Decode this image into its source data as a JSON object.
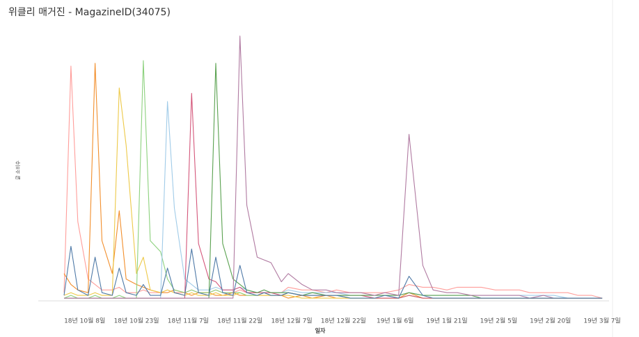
{
  "chart_data": {
    "type": "line",
    "title": "위클리 매거진 - MagazineID(34075)",
    "x_label": "일자",
    "y_label": "글 소비수",
    "x": [
      "2018-10-02",
      "2018-10-04",
      "2018-10-06",
      "2018-10-09",
      "2018-10-11",
      "2018-10-13",
      "2018-10-16",
      "2018-10-18",
      "2018-10-20",
      "2018-10-23",
      "2018-10-25",
      "2018-10-27",
      "2018-10-30",
      "2018-11-01",
      "2018-11-03",
      "2018-11-06",
      "2018-11-08",
      "2018-11-10",
      "2018-11-13",
      "2018-11-15",
      "2018-11-17",
      "2018-11-20",
      "2018-11-22",
      "2018-11-24",
      "2018-11-27",
      "2018-11-29",
      "2018-12-01",
      "2018-12-04",
      "2018-12-06",
      "2018-12-10",
      "2018-12-13",
      "2018-12-17",
      "2018-12-20",
      "2018-12-24",
      "2018-12-27",
      "2018-12-31",
      "2019-01-03",
      "2019-01-07",
      "2019-01-10",
      "2019-01-14",
      "2019-01-17",
      "2019-01-21",
      "2019-01-24",
      "2019-01-28",
      "2019-01-31",
      "2019-02-04",
      "2019-02-07",
      "2019-02-11",
      "2019-02-14",
      "2019-02-18",
      "2019-02-21",
      "2019-02-25",
      "2019-02-28",
      "2019-03-04",
      "2019-03-07"
    ],
    "xlim": [
      "2018-10-01",
      "2019-03-09"
    ],
    "xticks": [
      {
        "value": "2018-10-08",
        "label": "18년 10월 8일"
      },
      {
        "value": "2018-10-23",
        "label": "18년 10월 23일"
      },
      {
        "value": "2018-11-07",
        "label": "18년 11월 7일"
      },
      {
        "value": "2018-11-22",
        "label": "18년 11월 22일"
      },
      {
        "value": "2018-12-07",
        "label": "18년 12월 7일"
      },
      {
        "value": "2018-12-22",
        "label": "18년 12월 22일"
      },
      {
        "value": "2019-01-06",
        "label": "19년 1월 6일"
      },
      {
        "value": "2019-01-21",
        "label": "19년 1월 21일"
      },
      {
        "value": "2019-02-05",
        "label": "19년 2월 5일"
      },
      {
        "value": "2019-02-20",
        "label": "19년 2월 20일"
      },
      {
        "value": "2019-03-07",
        "label": "19년 3월 7일"
      }
    ],
    "ylim": [
      0,
      100
    ],
    "series": [
      {
        "color": "#ff9d9a",
        "values": [
          3,
          86,
          29,
          8,
          6,
          4,
          4,
          5,
          3,
          3,
          4,
          3,
          3,
          4,
          3,
          3,
          4,
          3,
          3,
          4,
          3,
          3,
          4,
          3,
          3,
          4,
          3,
          3,
          5,
          4,
          4,
          3,
          4,
          3,
          3,
          3,
          3,
          4,
          6,
          5,
          5,
          4,
          5,
          5,
          5,
          4,
          4,
          4,
          3,
          3,
          3,
          3,
          2,
          2,
          1
        ]
      },
      {
        "color": "#f28e2b",
        "values": [
          10,
          6,
          4,
          3,
          87,
          22,
          10,
          33,
          8,
          6,
          5,
          4,
          3,
          3,
          4,
          3,
          2,
          3,
          3,
          2,
          2,
          3,
          2,
          2,
          2,
          2,
          2,
          2,
          1,
          2,
          1,
          2,
          1,
          1,
          1,
          1,
          1,
          1,
          3,
          1,
          1,
          1,
          1,
          1,
          1,
          1,
          1,
          1,
          1,
          1,
          1,
          1,
          1,
          1,
          1
        ]
      },
      {
        "color": "#edc948",
        "values": [
          2,
          3,
          2,
          2,
          3,
          2,
          2,
          78,
          57,
          10,
          16,
          4,
          3,
          4,
          3,
          2,
          3,
          2,
          2,
          3,
          2,
          2,
          3,
          2,
          2,
          2,
          2,
          2,
          2,
          1,
          1,
          1,
          1,
          1,
          1,
          1,
          1,
          1,
          2,
          1,
          1,
          1,
          1,
          1,
          1,
          1,
          1,
          1,
          1,
          1,
          1,
          1,
          1,
          1,
          1
        ]
      },
      {
        "color": "#8cd17d",
        "values": [
          1,
          2,
          1,
          1,
          2,
          1,
          1,
          2,
          1,
          1,
          88,
          22,
          18,
          8,
          4,
          3,
          4,
          3,
          3,
          4,
          3,
          3,
          3,
          2,
          2,
          3,
          2,
          2,
          3,
          2,
          2,
          2,
          2,
          1,
          1,
          1,
          1,
          1,
          2,
          1,
          1,
          1,
          1,
          1,
          1,
          1,
          1,
          1,
          1,
          1,
          1,
          1,
          1,
          1,
          1
        ]
      },
      {
        "color": "#a0cbe8",
        "values": [
          1,
          1,
          1,
          1,
          1,
          1,
          1,
          1,
          1,
          1,
          1,
          1,
          1,
          73,
          34,
          8,
          6,
          4,
          4,
          5,
          4,
          4,
          5,
          4,
          3,
          4,
          3,
          3,
          4,
          3,
          3,
          3,
          3,
          2,
          2,
          2,
          2,
          2,
          3,
          2,
          2,
          2,
          2,
          2,
          2,
          2,
          2,
          2,
          2,
          2,
          2,
          1,
          1,
          1,
          1
        ]
      },
      {
        "color": "#d4567a",
        "values": [
          1,
          1,
          1,
          1,
          1,
          1,
          1,
          1,
          1,
          1,
          1,
          1,
          1,
          1,
          1,
          1,
          76,
          21,
          8,
          7,
          4,
          4,
          5,
          3,
          3,
          3,
          3,
          2,
          3,
          2,
          2,
          2,
          2,
          2,
          2,
          1,
          1,
          1,
          2,
          1,
          1,
          1,
          1,
          1,
          1,
          1,
          1,
          1,
          1,
          1,
          1,
          1,
          1,
          1,
          1
        ]
      },
      {
        "color": "#59a14f",
        "values": [
          1,
          1,
          1,
          1,
          1,
          1,
          1,
          1,
          1,
          1,
          1,
          1,
          1,
          1,
          1,
          1,
          1,
          1,
          1,
          87,
          21,
          8,
          6,
          4,
          3,
          4,
          3,
          3,
          3,
          2,
          3,
          2,
          2,
          2,
          2,
          2,
          2,
          2,
          3,
          2,
          2,
          2,
          2,
          2,
          1,
          1,
          1,
          1,
          1,
          1,
          1,
          1,
          1,
          1,
          1
        ]
      },
      {
        "color": "#b07aa1",
        "values": [
          1,
          1,
          1,
          1,
          1,
          1,
          1,
          1,
          1,
          1,
          1,
          1,
          1,
          1,
          1,
          1,
          1,
          1,
          1,
          1,
          1,
          1,
          97,
          35,
          16,
          15,
          14,
          7,
          10,
          6,
          4,
          4,
          3,
          3,
          3,
          2,
          3,
          2,
          61,
          13,
          4,
          3,
          3,
          2,
          2,
          2,
          2,
          2,
          1,
          2,
          1,
          1,
          1,
          1,
          1
        ]
      },
      {
        "color": "#4e79a7",
        "values": [
          2,
          20,
          4,
          2,
          16,
          3,
          2,
          12,
          3,
          2,
          6,
          2,
          2,
          12,
          3,
          2,
          19,
          3,
          2,
          16,
          3,
          2,
          13,
          3,
          2,
          3,
          2,
          2,
          3,
          2,
          2,
          2,
          2,
          1,
          1,
          1,
          2,
          1,
          9,
          2,
          1,
          1,
          1,
          1,
          1,
          1,
          1,
          1,
          1,
          1,
          1,
          1,
          1,
          1,
          1
        ]
      }
    ]
  }
}
